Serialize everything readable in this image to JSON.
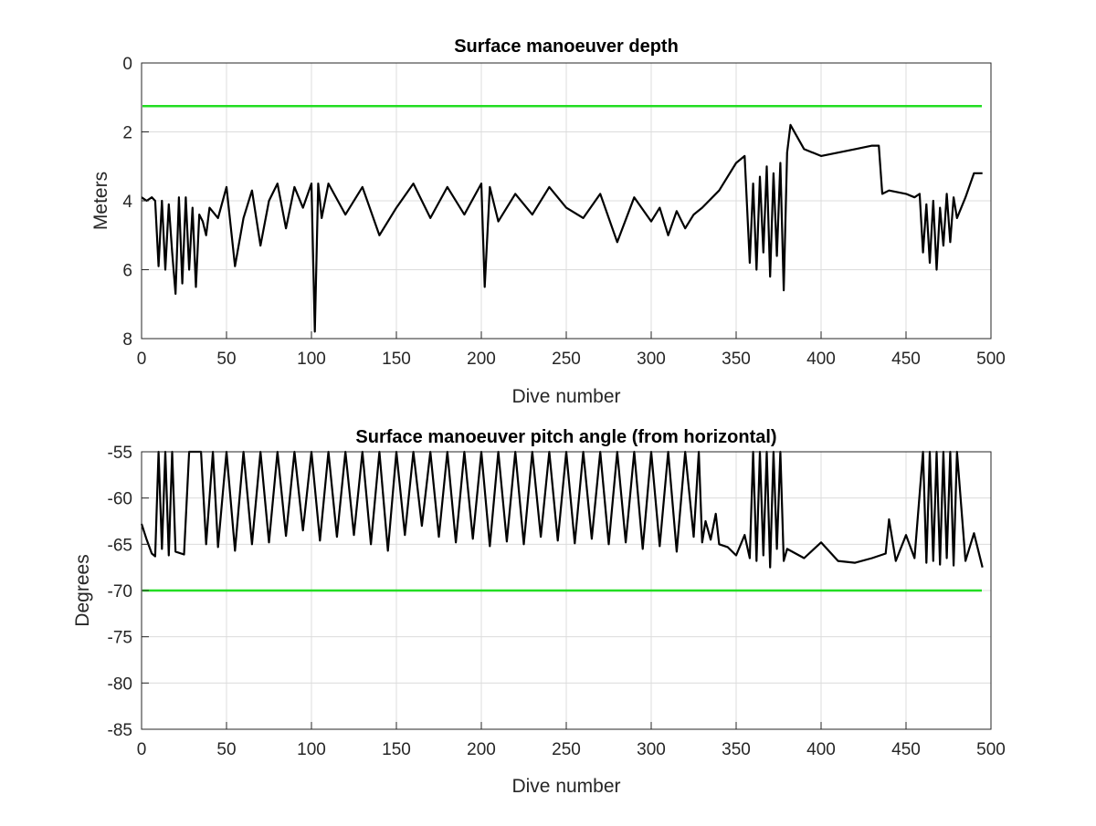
{
  "chart_data": [
    {
      "type": "line",
      "title": "Surface manoeuver depth",
      "xlabel": "Dive number",
      "ylabel": "Meters",
      "xlim": [
        0,
        500
      ],
      "ylim": [
        0,
        8
      ],
      "y_reversed": true,
      "grid": true,
      "xticks": [
        "0",
        "50",
        "100",
        "150",
        "200",
        "250",
        "300",
        "350",
        "400",
        "450",
        "500"
      ],
      "yticks": [
        "0",
        "2",
        "4",
        "6",
        "8"
      ],
      "threshold": {
        "y": 1.25,
        "color": "#22dd22"
      },
      "line_color": "#000000",
      "series": [
        {
          "x": [
            0,
            3,
            6,
            8,
            10,
            12,
            14,
            16,
            18,
            20,
            22,
            24,
            26,
            28,
            30,
            32,
            34,
            36,
            38,
            40,
            45,
            50,
            55,
            60,
            65,
            70,
            75,
            80,
            85,
            90,
            95,
            100,
            102,
            104,
            106,
            110,
            120,
            130,
            140,
            150,
            160,
            170,
            180,
            190,
            200,
            202,
            205,
            210,
            220,
            230,
            240,
            250,
            260,
            270,
            280,
            290,
            300,
            305,
            310,
            315,
            320,
            325,
            330,
            340,
            350,
            355,
            358,
            360,
            362,
            364,
            366,
            368,
            370,
            372,
            374,
            376,
            378,
            380,
            382,
            390,
            400,
            410,
            420,
            430,
            434,
            436,
            440,
            450,
            455,
            458,
            460,
            462,
            464,
            466,
            468,
            470,
            472,
            474,
            476,
            478,
            480,
            485,
            490,
            495
          ],
          "y": [
            3.9,
            4.0,
            3.9,
            4.0,
            5.9,
            4.0,
            6.0,
            4.1,
            5.5,
            6.7,
            3.9,
            6.4,
            3.9,
            6.0,
            4.2,
            6.5,
            4.4,
            4.6,
            5.0,
            4.2,
            4.5,
            3.6,
            5.9,
            4.5,
            3.7,
            5.3,
            4.0,
            3.5,
            4.8,
            3.6,
            4.2,
            3.5,
            7.8,
            3.5,
            4.5,
            3.5,
            4.4,
            3.6,
            5.0,
            4.2,
            3.5,
            4.5,
            3.6,
            4.4,
            3.5,
            6.5,
            3.6,
            4.6,
            3.8,
            4.4,
            3.6,
            4.2,
            4.5,
            3.8,
            5.2,
            3.9,
            4.6,
            4.2,
            5.0,
            4.3,
            4.8,
            4.4,
            4.2,
            3.7,
            2.9,
            2.7,
            5.8,
            3.5,
            6.0,
            3.3,
            5.5,
            3.0,
            6.2,
            3.2,
            5.6,
            2.9,
            6.6,
            2.6,
            1.8,
            2.5,
            2.7,
            2.6,
            2.5,
            2.4,
            2.4,
            3.8,
            3.7,
            3.8,
            3.9,
            3.8,
            5.5,
            4.1,
            5.8,
            4.0,
            6.0,
            4.2,
            5.3,
            3.8,
            5.2,
            3.9,
            4.5,
            3.9,
            3.2,
            3.2
          ]
        }
      ]
    },
    {
      "type": "line",
      "title": "Surface manoeuver pitch angle (from horizontal)",
      "xlabel": "Dive number",
      "ylabel": "Degrees",
      "xlim": [
        0,
        500
      ],
      "ylim": [
        -85,
        -55
      ],
      "grid": true,
      "xticks": [
        "0",
        "50",
        "100",
        "150",
        "200",
        "250",
        "300",
        "350",
        "400",
        "450",
        "500"
      ],
      "yticks": [
        "-55",
        "-60",
        "-65",
        "-70",
        "-75",
        "-80",
        "-85"
      ],
      "threshold": {
        "y": -70,
        "color": "#22dd22"
      },
      "line_color": "#000000",
      "series": [
        {
          "x": [
            0,
            3,
            6,
            8,
            10,
            12,
            14,
            16,
            18,
            20,
            25,
            28,
            35,
            38,
            42,
            45,
            50,
            55,
            60,
            65,
            70,
            75,
            80,
            85,
            90,
            95,
            100,
            105,
            110,
            115,
            120,
            125,
            130,
            135,
            140,
            145,
            150,
            155,
            160,
            165,
            170,
            175,
            180,
            185,
            190,
            195,
            200,
            205,
            210,
            215,
            220,
            225,
            230,
            235,
            240,
            245,
            250,
            255,
            260,
            265,
            270,
            275,
            280,
            285,
            290,
            295,
            300,
            305,
            310,
            315,
            320,
            325,
            328,
            330,
            332,
            335,
            338,
            340,
            345,
            350,
            355,
            358,
            360,
            362,
            364,
            366,
            368,
            370,
            372,
            374,
            376,
            378,
            380,
            390,
            400,
            410,
            420,
            430,
            438,
            440,
            444,
            450,
            455,
            460,
            462,
            464,
            466,
            468,
            470,
            472,
            474,
            476,
            478,
            480,
            485,
            490,
            495
          ],
          "y": [
            -62.8,
            -64.5,
            -66.0,
            -66.3,
            -55,
            -65.5,
            -55,
            -66.2,
            -55,
            -65.8,
            -66.1,
            -55,
            -55,
            -65.0,
            -55,
            -65.3,
            -55,
            -65.7,
            -55,
            -65.0,
            -55,
            -64.8,
            -55,
            -64.1,
            -55,
            -63.5,
            -55,
            -64.6,
            -55,
            -64.2,
            -55,
            -64.0,
            -55,
            -65.0,
            -55,
            -65.7,
            -55,
            -64.0,
            -55,
            -63.0,
            -55,
            -64.2,
            -55,
            -64.8,
            -55,
            -64.4,
            -55,
            -65.2,
            -55,
            -64.7,
            -55,
            -65.0,
            -55,
            -64.2,
            -55,
            -64.6,
            -55,
            -64.9,
            -55,
            -64.4,
            -55,
            -65.0,
            -55,
            -64.8,
            -55,
            -65.5,
            -55,
            -65.2,
            -55,
            -65.8,
            -55,
            -64.2,
            -55,
            -64.8,
            -62.5,
            -64.5,
            -61.7,
            -65.0,
            -65.3,
            -66.2,
            -64.0,
            -66.5,
            -55,
            -66.8,
            -55,
            -66.2,
            -55,
            -67.5,
            -55,
            -65.5,
            -55,
            -66.8,
            -65.5,
            -66.5,
            -64.8,
            -66.8,
            -67.0,
            -66.5,
            -66.0,
            -62.3,
            -66.8,
            -64.0,
            -66.5,
            -55,
            -67.0,
            -55,
            -66.8,
            -55,
            -67.2,
            -55,
            -66.5,
            -55,
            -67.3,
            -55,
            -66.8,
            -63.8,
            -67.5
          ]
        }
      ]
    }
  ]
}
